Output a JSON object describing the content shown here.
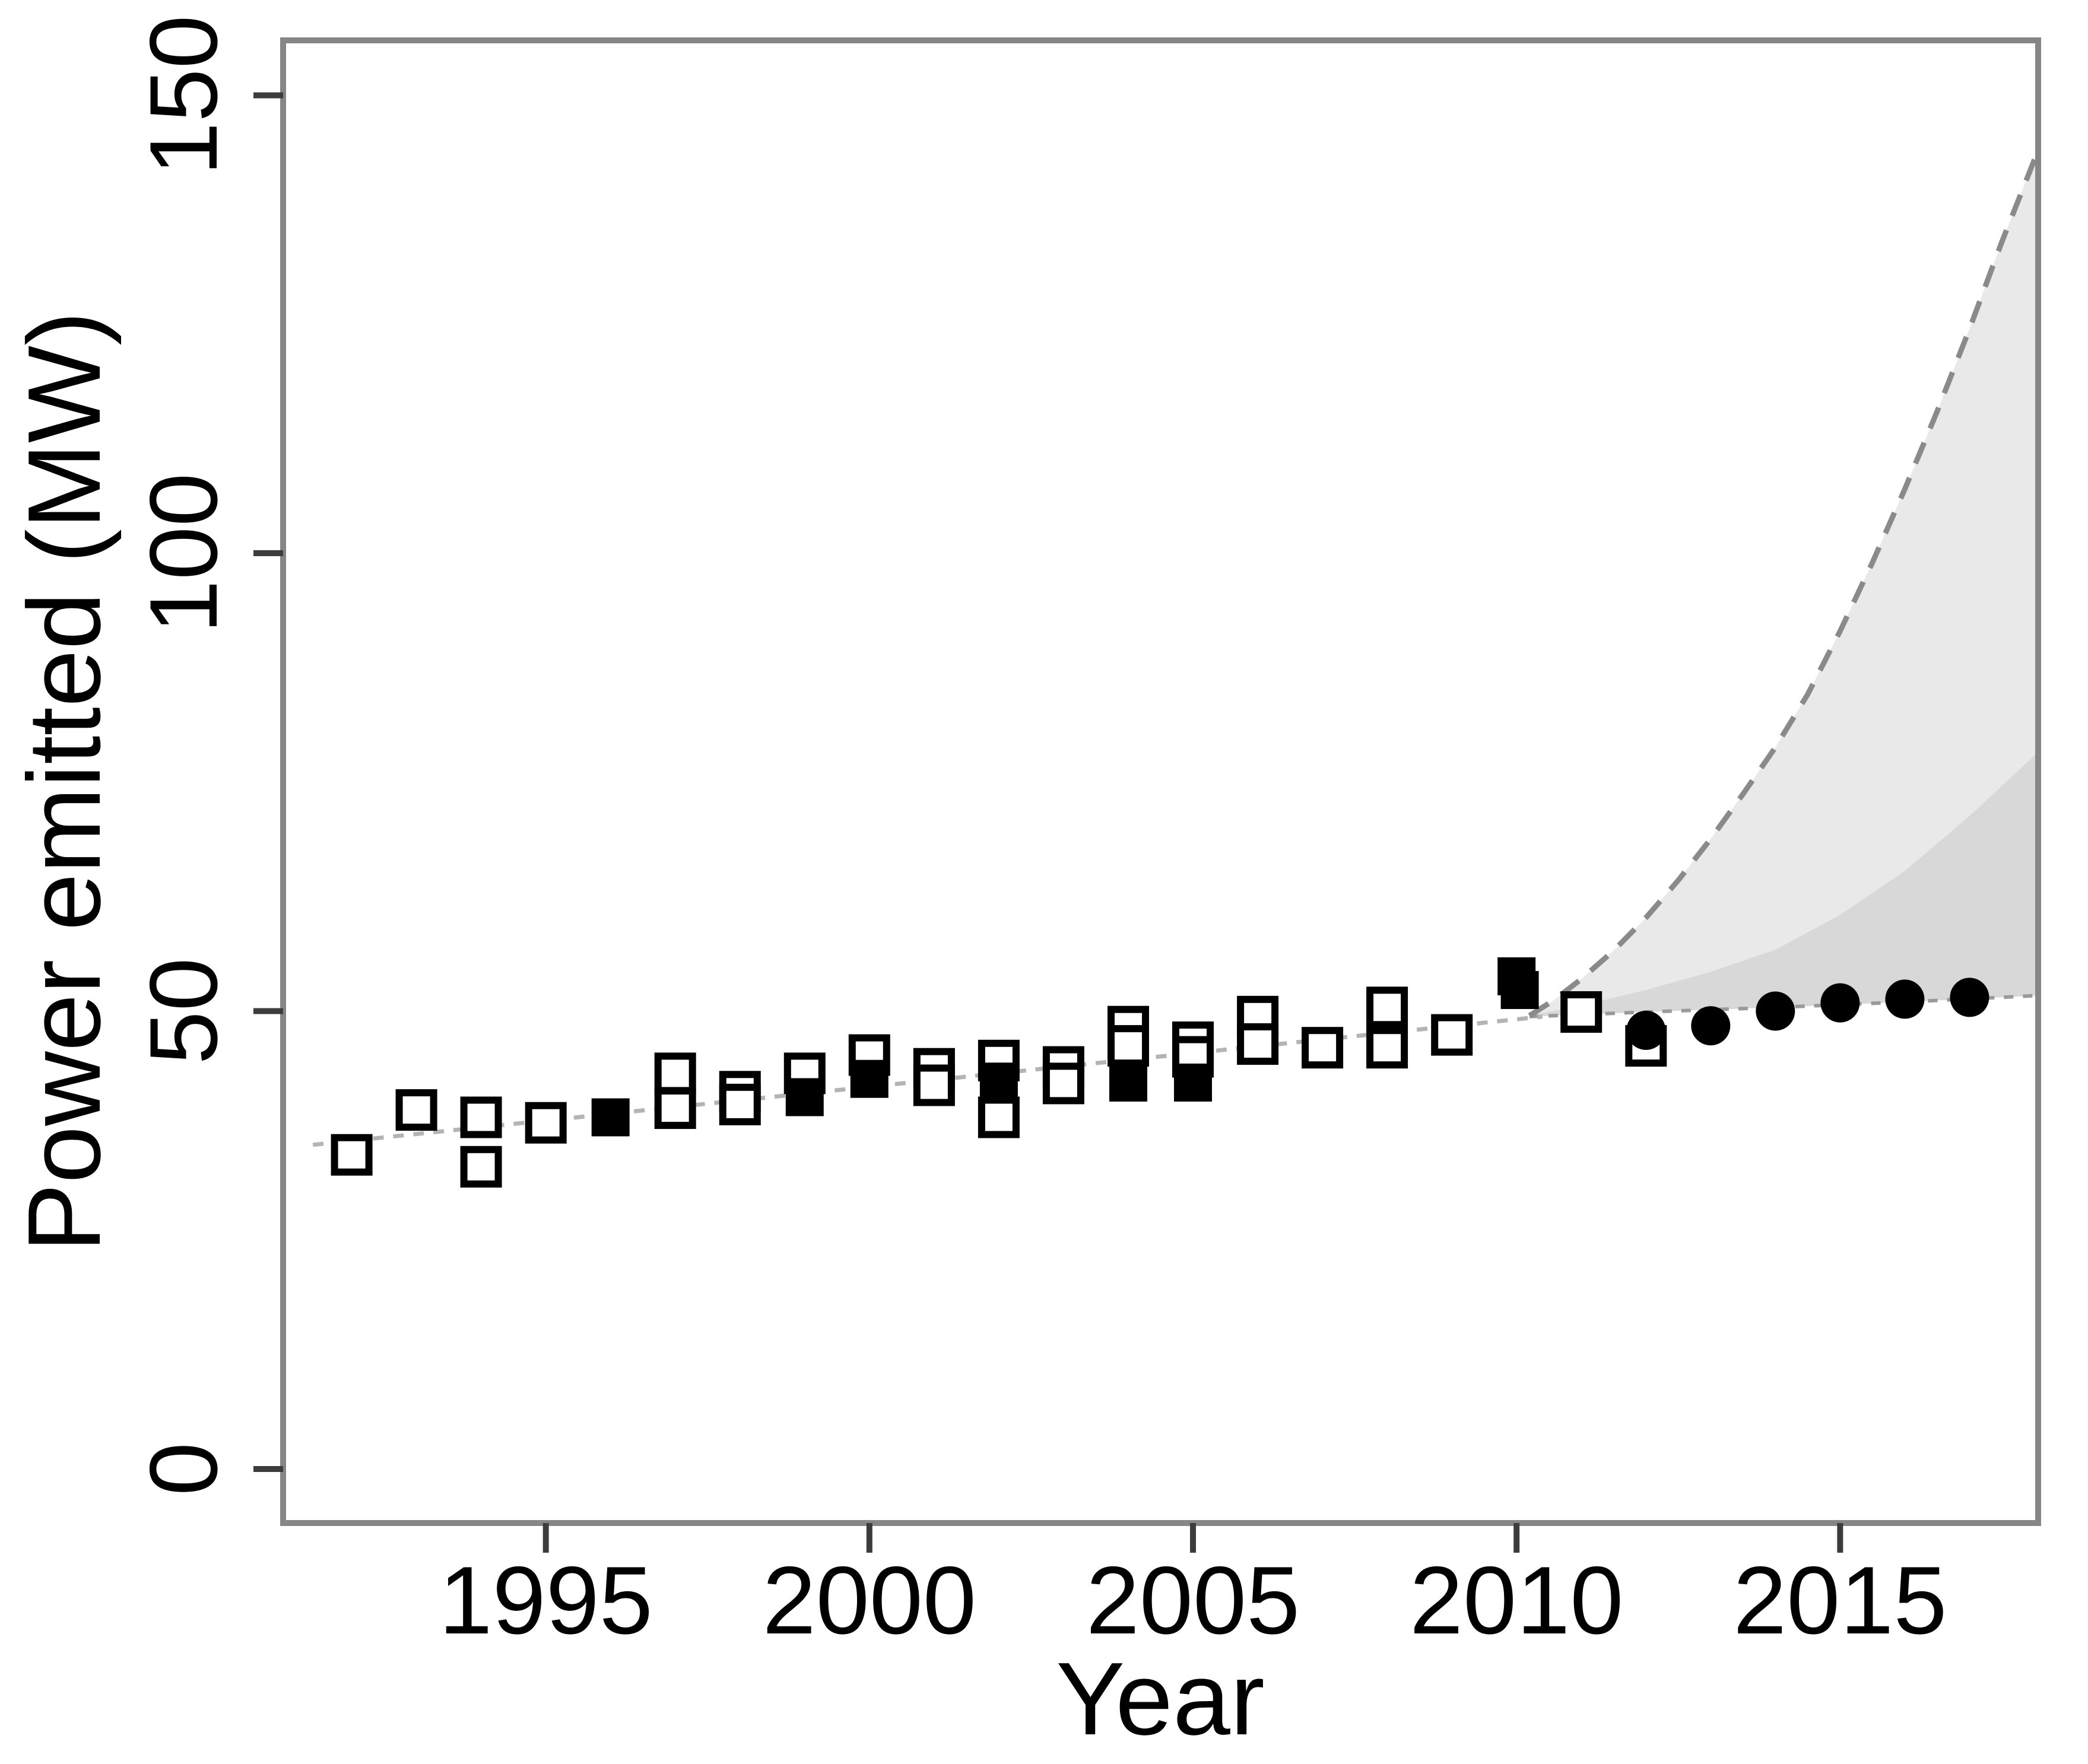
{
  "figure": {
    "kind": "R-style scatter plot with forecast fan",
    "background": "#ffffff"
  },
  "chart_data": {
    "type": "scatter",
    "title": "",
    "xlabel": "Year",
    "ylabel": "Power emitted (MW)",
    "xlim": [
      1990.94,
      2018.06
    ],
    "ylim": [
      -5.9,
      156.0
    ],
    "x_ticks": [
      1995,
      2000,
      2005,
      2010,
      2015
    ],
    "y_ticks": [
      0,
      50,
      100,
      150
    ],
    "grid": false,
    "legend_position": "none",
    "series": [
      {
        "name": "observed-open-squares",
        "marker": "open-square",
        "points": [
          [
            1992,
            34.3
          ],
          [
            1993,
            39.2
          ],
          [
            1994,
            38.4
          ],
          [
            1994,
            33.0
          ],
          [
            1995,
            37.8
          ],
          [
            1997,
            43.2
          ],
          [
            1997,
            39.4
          ],
          [
            1998,
            41.2
          ],
          [
            1998,
            39.8
          ],
          [
            1999,
            43.2
          ],
          [
            2000,
            45.2
          ],
          [
            2001,
            43.7
          ],
          [
            2001,
            41.9
          ],
          [
            2002,
            44.6
          ],
          [
            2002,
            38.4
          ],
          [
            2003,
            43.9
          ],
          [
            2003,
            42.1
          ],
          [
            2004,
            48.3
          ],
          [
            2004,
            46.2
          ],
          [
            2005,
            46.6
          ],
          [
            2005,
            45.0
          ],
          [
            2006,
            49.4
          ],
          [
            2006,
            46.4
          ],
          [
            2007,
            46.0
          ],
          [
            2008,
            50.4
          ],
          [
            2008,
            46.0
          ],
          [
            2009,
            47.4
          ],
          [
            2011,
            49.9
          ],
          [
            2012,
            46.2
          ]
        ]
      },
      {
        "name": "observed-filled-squares",
        "marker": "filled-square",
        "points": [
          [
            1996,
            38.4
          ],
          [
            1999,
            40.6
          ],
          [
            2000,
            42.6
          ],
          [
            2002,
            42.3
          ],
          [
            2004,
            42.2
          ],
          [
            2005,
            42.2
          ],
          [
            2010,
            53.8
          ],
          [
            2010.05,
            52.3
          ]
        ]
      },
      {
        "name": "forecast-filled-circles",
        "marker": "filled-circle",
        "points": [
          [
            2012,
            47.9
          ],
          [
            2013,
            48.4
          ],
          [
            2014,
            50.0
          ],
          [
            2015,
            50.9
          ],
          [
            2016,
            51.3
          ],
          [
            2017,
            51.5
          ]
        ]
      },
      {
        "name": "fitted-trend-line",
        "marker": "none",
        "style": "thin-light-dashed",
        "points": [
          [
            1991.4,
            35.4
          ],
          [
            2010.4,
            49.4
          ]
        ]
      },
      {
        "name": "prediction-outer-upper-bound",
        "marker": "none",
        "style": "dark-dashed",
        "points": [
          [
            2010.2,
            49.5
          ],
          [
            2010.6,
            51.3
          ],
          [
            2011,
            53.5
          ],
          [
            2011.5,
            56.6
          ],
          [
            2012,
            60.2
          ],
          [
            2012.5,
            64.3
          ],
          [
            2013,
            68.8
          ],
          [
            2013.5,
            73.7
          ],
          [
            2014,
            78.8
          ],
          [
            2014.5,
            84.6
          ],
          [
            2015,
            91.5
          ],
          [
            2015.5,
            99.0
          ],
          [
            2016,
            107.0
          ],
          [
            2016.5,
            115.5
          ],
          [
            2017,
            124.5
          ],
          [
            2017.5,
            134.0
          ],
          [
            2018.06,
            144.0
          ]
        ]
      },
      {
        "name": "prediction-inner-upper-bound",
        "marker": "none",
        "style": "band-edge",
        "points": [
          [
            2010.2,
            49.5
          ],
          [
            2011,
            50.6
          ],
          [
            2012,
            52.3
          ],
          [
            2013,
            54.3
          ],
          [
            2014,
            56.7
          ],
          [
            2015,
            60.5
          ],
          [
            2016,
            65.3
          ],
          [
            2017,
            71.3
          ],
          [
            2018.06,
            78.3
          ]
        ]
      },
      {
        "name": "prediction-lower-bound",
        "marker": "none",
        "style": "thin-dashed",
        "points": [
          [
            2010.2,
            49.4
          ],
          [
            2012,
            49.9
          ],
          [
            2014,
            50.4
          ],
          [
            2016,
            51.0
          ],
          [
            2018.06,
            51.7
          ]
        ]
      }
    ],
    "bands": [
      {
        "name": "outer-prediction-band",
        "upper": "prediction-outer-upper-bound",
        "lower": "prediction-lower-bound",
        "color": "#e9e9e9"
      },
      {
        "name": "inner-prediction-band",
        "upper": "prediction-inner-upper-bound",
        "lower": "prediction-lower-bound",
        "color": "#d8d8d8"
      }
    ],
    "colors": {
      "marker": "#000000",
      "open_marker_fill": "#ffffff",
      "frame": "#868686",
      "tick": "#3c3c3c",
      "text": "#000000",
      "fit_line": "#b4b4b4",
      "dashed_bound": "#8a8a8a",
      "lower_bound": "#9a9a9a",
      "band_outer": "#e9e9e9",
      "band_inner": "#d8d8d8"
    }
  }
}
